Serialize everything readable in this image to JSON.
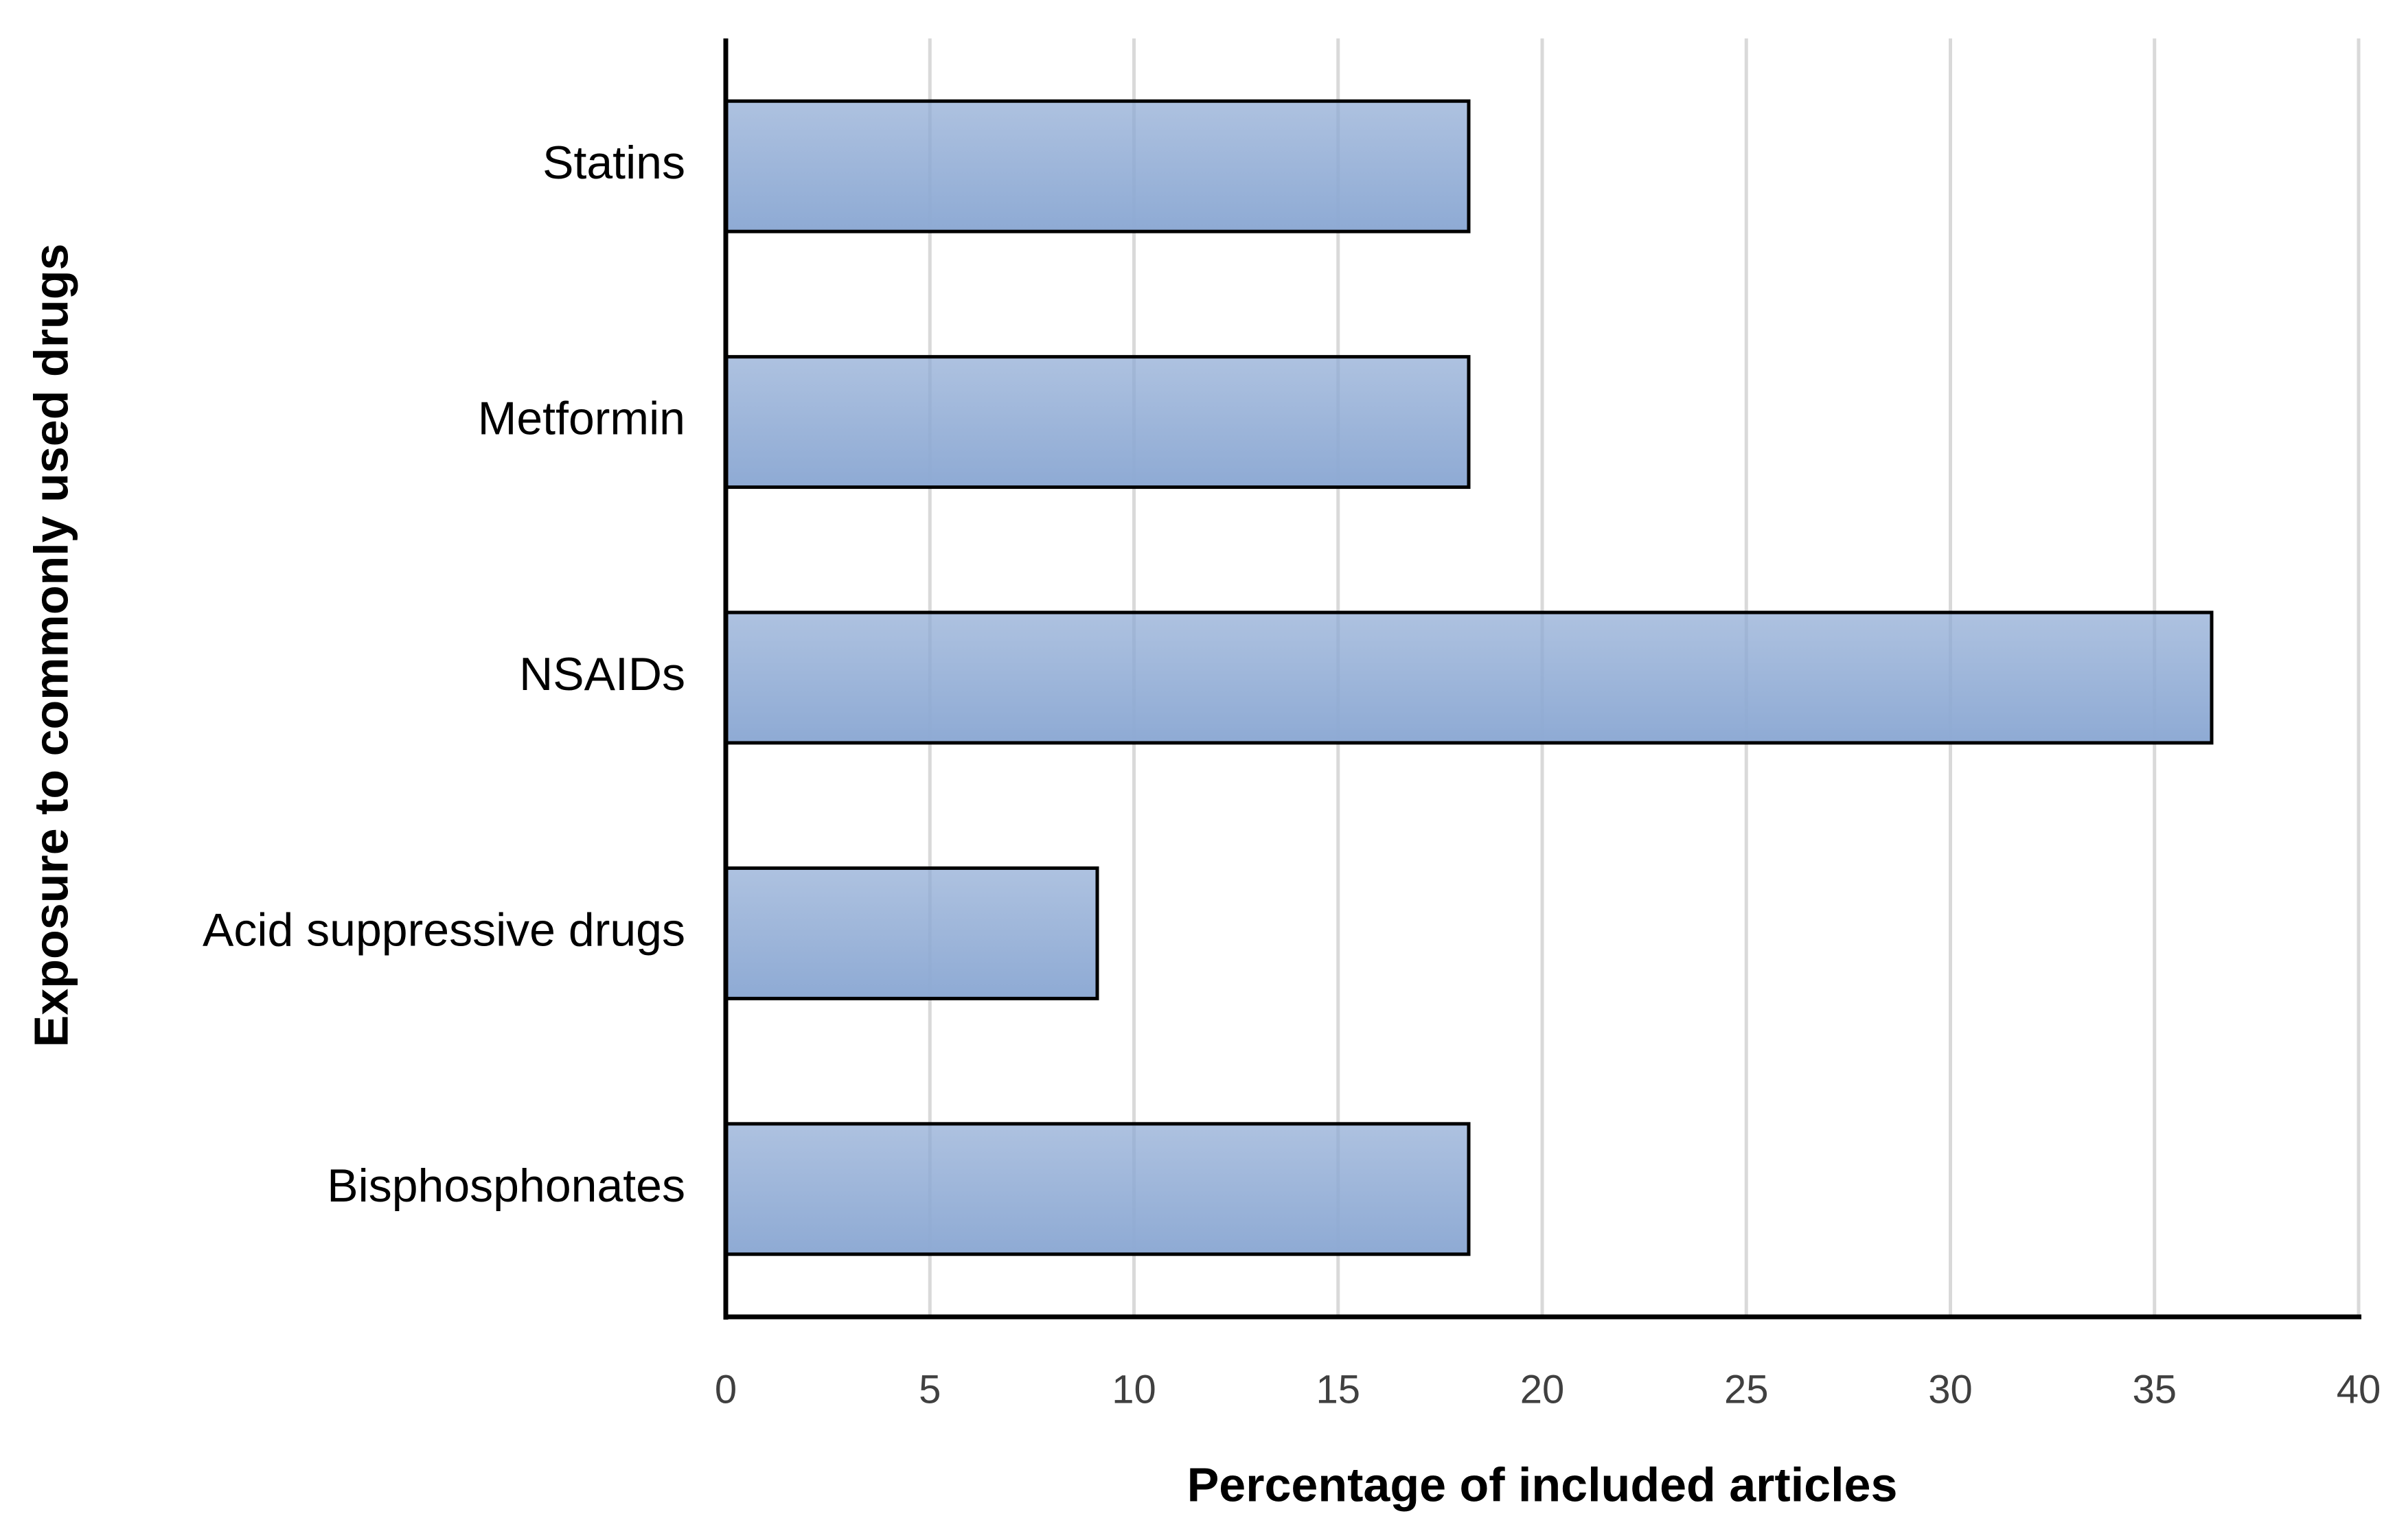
{
  "chart_data": {
    "type": "hbar",
    "x_label": "Percentage of included articles",
    "y_label": "Exposure to commonly used drugs",
    "categories": [
      "Statins",
      "Metformin",
      "NSAIDs",
      "Acid suppressive drugs",
      "Bisphosphonates"
    ],
    "values": [
      18.2,
      18.2,
      36.4,
      9.1,
      18.2
    ],
    "color": "#8eaad4",
    "xlim": [
      0,
      40
    ],
    "xticks": [
      0,
      5,
      10,
      15,
      20,
      25,
      30,
      35,
      40
    ],
    "grid": true
  }
}
